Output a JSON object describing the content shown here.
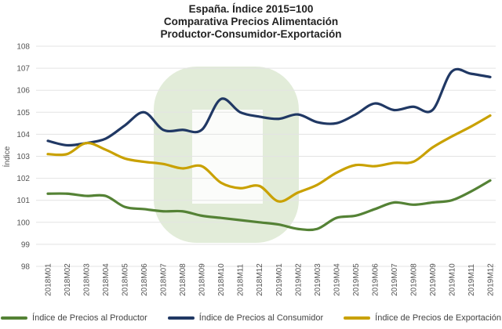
{
  "chart_data": {
    "type": "line",
    "title": [
      "España. Índice 2015=100",
      "Comparativa Precios Alimentación",
      "Productor-Consumidor-Exportación"
    ],
    "ylabel": "Índice",
    "xlabel": "",
    "ylim": [
      98,
      108
    ],
    "yticks": [
      "98",
      "99",
      "100",
      "101",
      "102",
      "103",
      "104",
      "105",
      "106",
      "107",
      "108"
    ],
    "grid": true,
    "legend_position": "bottom",
    "categories": [
      "2018M01",
      "2018M02",
      "2018M03",
      "2018M04",
      "2018M05",
      "2018M06",
      "2018M07",
      "2018M08",
      "2018M09",
      "2018M10",
      "2018M11",
      "2018M12",
      "2019M01",
      "2019M02",
      "2019M03",
      "2019M04",
      "2019M05",
      "2019M06",
      "2019M07",
      "2019M08",
      "2019M09",
      "2019M10",
      "2019M11",
      "2019M12"
    ],
    "series": [
      {
        "name": "Índice de Precios al Productor",
        "color": "#548235",
        "values": [
          101.3,
          101.3,
          101.2,
          101.2,
          100.7,
          100.6,
          100.5,
          100.5,
          100.3,
          100.2,
          100.1,
          100.0,
          99.9,
          99.7,
          99.7,
          100.2,
          100.3,
          100.6,
          100.9,
          100.8,
          100.9,
          101.0,
          101.4,
          101.9
        ]
      },
      {
        "name": "Índice de Precios al Consumidor",
        "color": "#203864",
        "values": [
          103.7,
          103.5,
          103.6,
          103.8,
          104.4,
          105.0,
          104.2,
          104.2,
          104.2,
          105.6,
          105.0,
          104.8,
          104.7,
          104.9,
          104.55,
          104.5,
          104.9,
          105.4,
          105.1,
          105.25,
          105.1,
          106.85,
          106.75,
          106.6
        ]
      },
      {
        "name": "Índice de Precios de Exportación",
        "color": "#C9A100",
        "values": [
          103.1,
          103.1,
          103.6,
          103.3,
          102.9,
          102.75,
          102.65,
          102.45,
          102.55,
          101.8,
          101.55,
          101.65,
          100.95,
          101.35,
          101.7,
          102.25,
          102.6,
          102.55,
          102.7,
          102.75,
          103.4,
          103.9,
          104.35,
          104.85
        ]
      }
    ],
    "watermark_color": "#e2ecd9"
  }
}
